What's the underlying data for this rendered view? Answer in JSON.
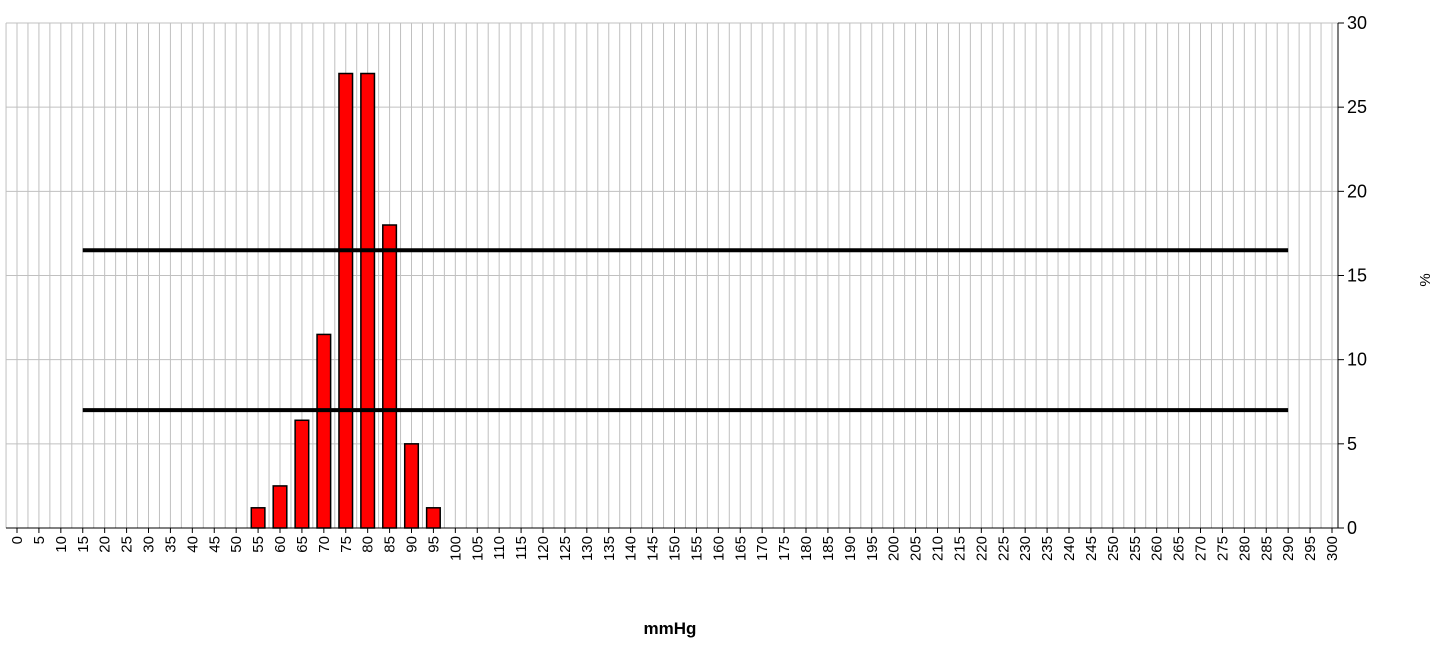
{
  "chart_data": {
    "type": "bar",
    "x_label": "mmHg",
    "y_label": "%",
    "categories": [
      "0",
      "5",
      "10",
      "15",
      "20",
      "25",
      "30",
      "35",
      "40",
      "45",
      "50",
      "55",
      "60",
      "65",
      "70",
      "75",
      "80",
      "85",
      "90",
      "95",
      "100",
      "105",
      "110",
      "115",
      "120",
      "125",
      "130",
      "135",
      "140",
      "145",
      "150",
      "155",
      "160",
      "165",
      "170",
      "175",
      "180",
      "185",
      "190",
      "195",
      "200",
      "205",
      "210",
      "215",
      "220",
      "225",
      "230",
      "235",
      "240",
      "245",
      "250",
      "255",
      "260",
      "265",
      "270",
      "275",
      "280",
      "285",
      "290",
      "295",
      "300"
    ],
    "values": [
      0,
      0,
      0,
      0,
      0,
      0,
      0,
      0,
      0,
      0,
      0,
      1.2,
      2.5,
      6.4,
      11.5,
      27,
      27,
      18,
      5,
      1.2,
      0,
      0,
      0,
      0,
      0,
      0,
      0,
      0,
      0,
      0,
      0,
      0,
      0,
      0,
      0,
      0,
      0,
      0,
      0,
      0,
      0,
      0,
      0,
      0,
      0,
      0,
      0,
      0,
      0,
      0,
      0,
      0,
      0,
      0,
      0,
      0,
      0,
      0,
      0,
      0,
      0
    ],
    "color": "#ff0000",
    "reference_lines": [
      16.5,
      7
    ],
    "ylim": [
      0,
      30
    ],
    "yticks": [
      0,
      5,
      10,
      15,
      20,
      25,
      30
    ],
    "y_axis_side": "right",
    "grid": true
  }
}
